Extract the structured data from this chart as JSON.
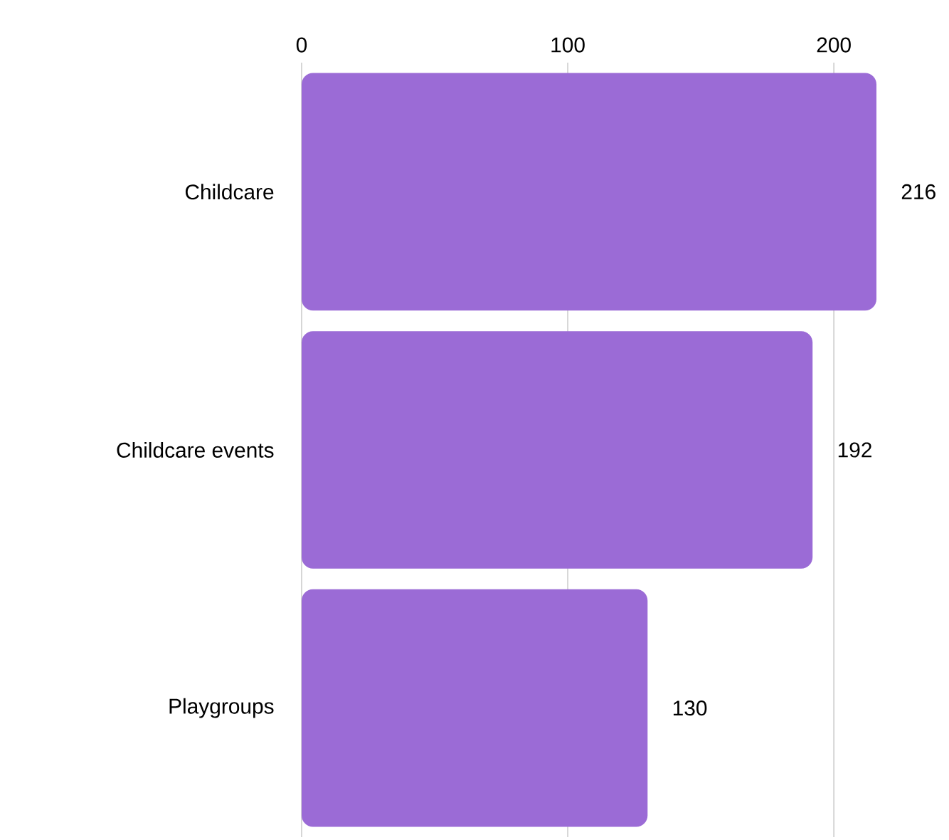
{
  "chart_data": {
    "type": "bar",
    "orientation": "horizontal",
    "categories": [
      "Childcare",
      "Childcare events",
      "Playgroups"
    ],
    "values": [
      216,
      192,
      130
    ],
    "color": "#9b6bd6",
    "xlim": [
      0,
      216
    ],
    "xticks": [
      0,
      100,
      200
    ],
    "grid": "x",
    "data_labels": true
  }
}
